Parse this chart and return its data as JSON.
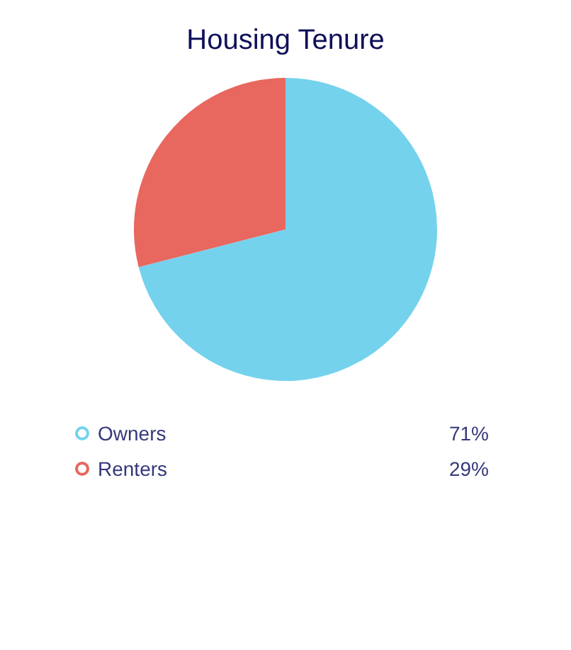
{
  "chart_data": {
    "type": "pie",
    "title": "Housing Tenure",
    "categories": [
      "Owners",
      "Renters"
    ],
    "values": [
      71,
      29
    ],
    "colors": [
      "#74d2ed",
      "#e8675f"
    ],
    "value_labels": [
      "71%",
      "29%"
    ],
    "legend": "bottom"
  }
}
